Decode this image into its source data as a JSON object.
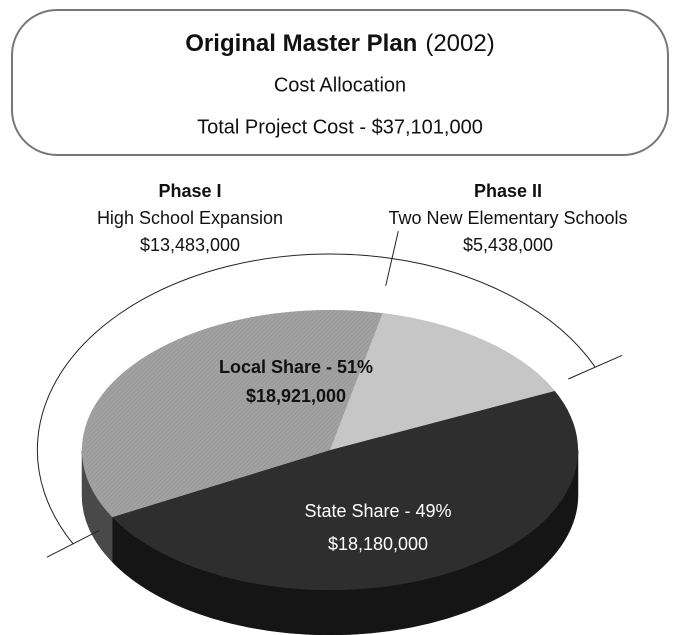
{
  "chart_data": {
    "type": "pie",
    "title": "Original Master Plan",
    "title_note": "(2002)",
    "subtitle": "Cost Allocation",
    "total_label": "Total Project Cost - $37,101,000",
    "shares": [
      {
        "label": "State Share - 49%",
        "value": 18180000,
        "value_label": "$18,180,000",
        "color": "#2e2e2e"
      },
      {
        "label": "Local Share - 51%",
        "value": 18921000,
        "value_label": "$18,921,000",
        "color": "#a2a2a2"
      }
    ],
    "phases": [
      {
        "name": "Phase I",
        "description": "High School Expansion",
        "value": 13483000,
        "value_label": "$13,483,000",
        "color": "#a2a2a2"
      },
      {
        "name": "Phase II",
        "description": "Two New Elementary Schools",
        "value": 5438000,
        "value_label": "$5,438,000",
        "color": "#c6c6c6"
      }
    ]
  }
}
